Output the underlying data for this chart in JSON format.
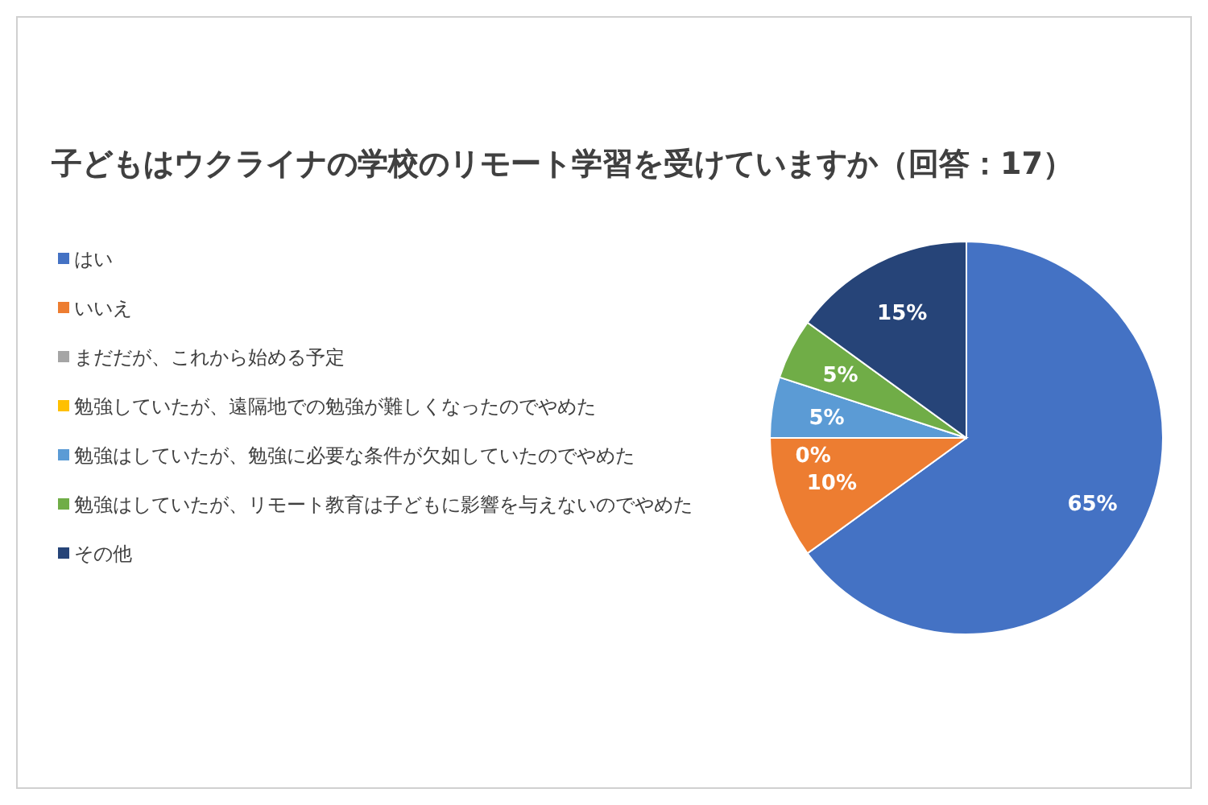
{
  "chart_data": {
    "type": "pie",
    "title": "子どもはウクライナの学校のリモート学習を受けていますか（回答：17）",
    "categories": [
      "はい",
      "いいえ",
      "まだだが、これから始める予定",
      "勉強していたが、遠隔地での勉強が難しくなったのでやめた",
      "勉強はしていたが、勉強に必要な条件が欠如していたのでやめた",
      "勉強はしていたが、リモート教育は子どもに影響を与えないのでやめた",
      "その他"
    ],
    "values": [
      65,
      10,
      0,
      0,
      5,
      5,
      15
    ],
    "colors": [
      "#4472c4",
      "#ed7d31",
      "#a5a5a5",
      "#ffc000",
      "#5b9bd5",
      "#70ad47",
      "#264478"
    ],
    "value_labels": [
      "65%",
      "10%",
      "0%",
      null,
      "5%",
      "5%",
      "15%"
    ],
    "legend": "left"
  }
}
